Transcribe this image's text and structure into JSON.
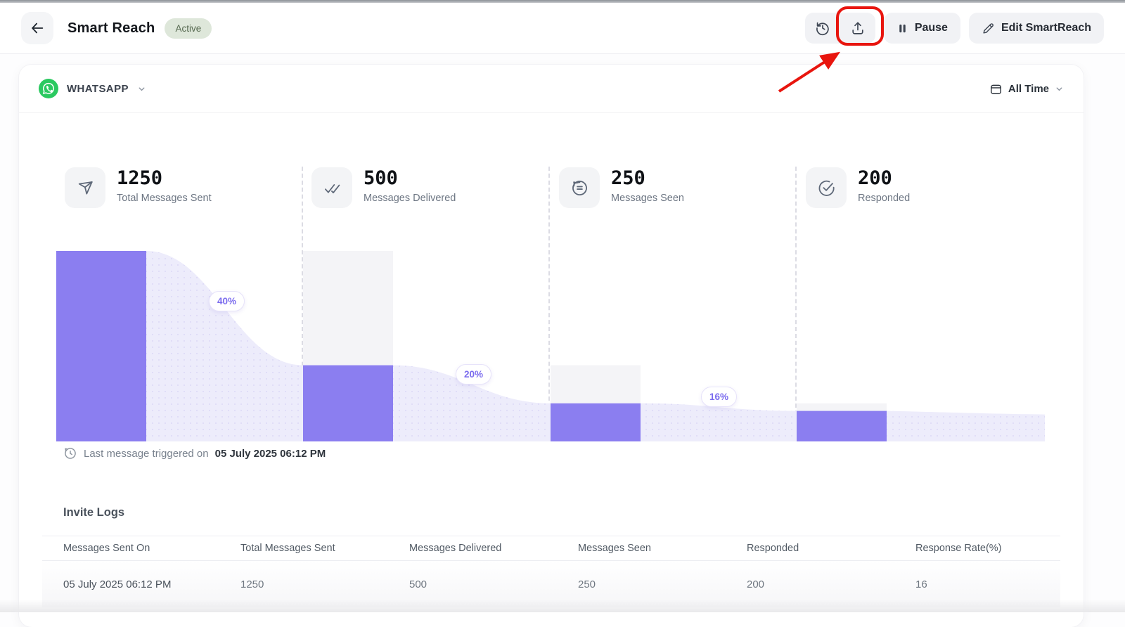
{
  "header": {
    "title": "Smart Reach",
    "status": "Active",
    "pause_label": "Pause",
    "edit_label": "Edit SmartReach"
  },
  "filters": {
    "channel": "WHATSAPP",
    "date_range": "All Time"
  },
  "stats": [
    {
      "value": "1250",
      "label": "Total Messages Sent",
      "icon": "send-icon"
    },
    {
      "value": "500",
      "label": "Messages Delivered",
      "icon": "double-check-icon"
    },
    {
      "value": "250",
      "label": "Messages Seen",
      "icon": "message-bubble-icon"
    },
    {
      "value": "200",
      "label": "Responded",
      "icon": "check-circle-icon"
    }
  ],
  "chart_data": {
    "type": "area",
    "stages": [
      {
        "label": "Total Messages Sent",
        "value": 1250,
        "pct_of_total": 100
      },
      {
        "label": "Messages Delivered",
        "value": 500,
        "pct_of_total": 40
      },
      {
        "label": "Messages Seen",
        "value": 250,
        "pct_of_total": 20
      },
      {
        "label": "Responded",
        "value": 200,
        "pct_of_total": 16
      }
    ],
    "conversion_labels": [
      "40%",
      "20%",
      "16%"
    ],
    "bar_color": "#8b7ef0",
    "track_color": "#f4f4f7",
    "area_color": "#edecfb",
    "area_dot_color": "#dcd8f6"
  },
  "last_triggered": {
    "prefix": "Last message triggered on",
    "datetime": "05 July 2025 06:12 PM"
  },
  "invite_logs": {
    "title": "Invite Logs",
    "columns": [
      "Messages Sent On",
      "Total Messages Sent",
      "Messages Delivered",
      "Messages Seen",
      "Responded",
      "Response Rate(%)"
    ],
    "rows": [
      [
        "05 July 2025 06:12 PM",
        "1250",
        "500",
        "250",
        "200",
        "16"
      ]
    ]
  },
  "annotation": {
    "highlight_color": "#e8150e"
  }
}
